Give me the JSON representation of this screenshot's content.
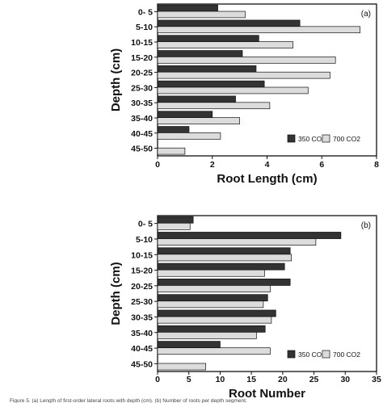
{
  "chart_data": [
    {
      "type": "bar",
      "orientation": "horizontal",
      "panel_label": "(a)",
      "categories": [
        "0- 5",
        "5-10",
        "10-15",
        "15-20",
        "20-25",
        "25-30",
        "30-35",
        "35-40",
        "40-45",
        "45-50"
      ],
      "series": [
        {
          "name": "350 CO2",
          "color": "#333333",
          "values": [
            2.2,
            5.2,
            3.7,
            3.1,
            3.6,
            3.9,
            2.85,
            2.0,
            1.15,
            null
          ]
        },
        {
          "name": "700 CO2",
          "color": "#dcdcdc",
          "values": [
            3.2,
            7.4,
            4.95,
            6.5,
            6.3,
            5.5,
            4.1,
            3.0,
            2.3,
            1.0
          ]
        }
      ],
      "xlabel": "Root Length (cm)",
      "ylabel": "Depth (cm)",
      "xlim": [
        0,
        8
      ],
      "xticks": [
        0,
        2,
        4,
        6,
        8
      ],
      "legend": "bottom-right",
      "grid": false
    },
    {
      "type": "bar",
      "orientation": "horizontal",
      "panel_label": "(b)",
      "categories": [
        "0- 5",
        "5-10",
        "10-15",
        "15-20",
        "20-25",
        "25-30",
        "30-35",
        "35-40",
        "40-45",
        "45-50"
      ],
      "series": [
        {
          "name": "350 CO2",
          "color": "#333333",
          "values": [
            5.7,
            29.3,
            21.2,
            20.3,
            21.2,
            17.6,
            18.9,
            17.2,
            10.0,
            null
          ]
        },
        {
          "name": "700 CO2",
          "color": "#dcdcdc",
          "values": [
            5.2,
            25.3,
            21.4,
            17.1,
            18.0,
            16.9,
            18.2,
            15.8,
            18.0,
            7.7
          ]
        }
      ],
      "xlabel": "Root Number",
      "ylabel": "Depth (cm)",
      "xlim": [
        0,
        35
      ],
      "xticks": [
        0,
        5,
        10,
        15,
        20,
        25,
        30,
        35
      ],
      "legend": "bottom-right",
      "grid": false
    }
  ],
  "caption": "Figure 5. (a) Length of first-order lateral roots with depth (cm). (b) Number of roots per depth segment."
}
